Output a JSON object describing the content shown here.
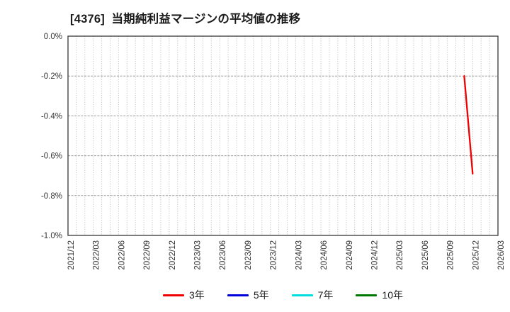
{
  "title": "[4376]  当期純利益マージンの平均値の推移",
  "chart_data": {
    "type": "line",
    "title": "[4376]  当期純利益マージンの平均値の推移",
    "xlabel": "",
    "ylabel": "",
    "ylim": [
      -1.0,
      0.0
    ],
    "grid": true,
    "legend_position": "bottom-center",
    "y_ticks": [
      {
        "value": 0.0,
        "label": "0.0%"
      },
      {
        "value": -0.2,
        "label": "-0.2%"
      },
      {
        "value": -0.4,
        "label": "-0.4%"
      },
      {
        "value": -0.6,
        "label": "-0.6%"
      },
      {
        "value": -0.8,
        "label": "-0.8%"
      },
      {
        "value": -1.0,
        "label": "-1.0%"
      }
    ],
    "x_tick_labels": [
      "2021/12",
      "2022/03",
      "2022/06",
      "2022/09",
      "2022/12",
      "2023/03",
      "2023/06",
      "2023/09",
      "2023/12",
      "2024/03",
      "2024/06",
      "2024/09",
      "2024/12",
      "2025/03",
      "2025/06",
      "2025/09",
      "2025/12",
      "2026/03"
    ],
    "x_start": "2021/12",
    "x_months_total": 51,
    "x_label_every_months": 3,
    "series": [
      {
        "name": "3年",
        "color": "#ee0000",
        "points": [
          {
            "date": "2025/11",
            "value": -0.2
          },
          {
            "date": "2025/12",
            "value": -0.69
          }
        ]
      },
      {
        "name": "5年",
        "color": "#0000dd",
        "points": []
      },
      {
        "name": "7年",
        "color": "#00dddd",
        "points": []
      },
      {
        "name": "10年",
        "color": "#007700",
        "points": []
      }
    ],
    "colors": {
      "grid_vertical": "#b8b8b8",
      "grid_horizontal": "#9a9a9a",
      "frame": "#444444",
      "tick_label": "#333333",
      "title": "#1a1a1a",
      "background": "#ffffff"
    }
  }
}
